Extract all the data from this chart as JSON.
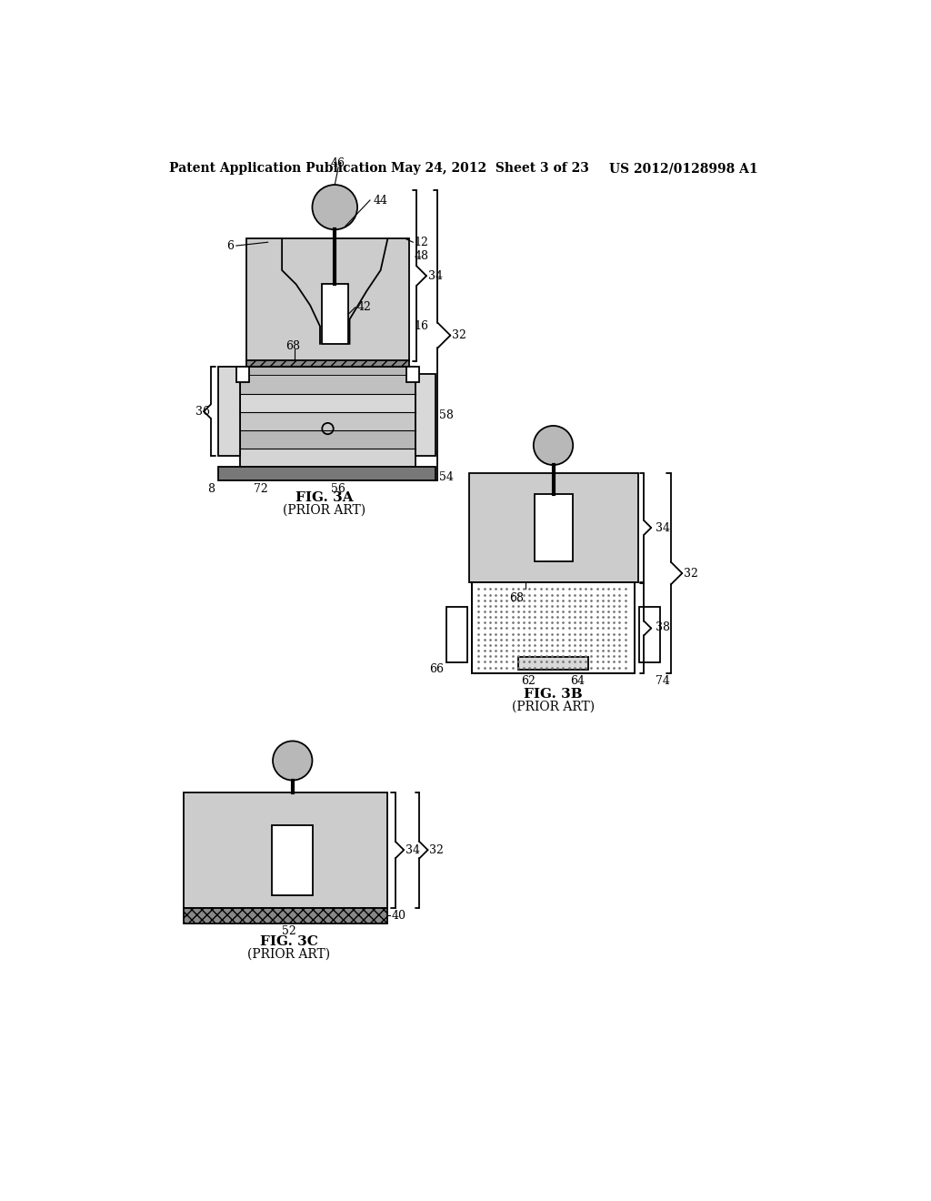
{
  "header_left": "Patent Application Publication",
  "header_mid": "May 24, 2012  Sheet 3 of 23",
  "header_right": "US 2012/0128998 A1",
  "fig3a_label": "FIG. 3A",
  "fig3a_sub": "(PRIOR ART)",
  "fig3b_label": "FIG. 3B",
  "fig3b_sub": "(PRIOR ART)",
  "fig3c_label": "FIG. 3C",
  "fig3c_sub": "(PRIOR ART)",
  "bg_color": "#ffffff",
  "line_color": "#000000",
  "gray_light": "#d8d8d8",
  "gray_medium": "#b8b8b8",
  "gray_dark": "#787878",
  "gray_fill": "#cccccc",
  "gray_deep": "#a0a0a0"
}
